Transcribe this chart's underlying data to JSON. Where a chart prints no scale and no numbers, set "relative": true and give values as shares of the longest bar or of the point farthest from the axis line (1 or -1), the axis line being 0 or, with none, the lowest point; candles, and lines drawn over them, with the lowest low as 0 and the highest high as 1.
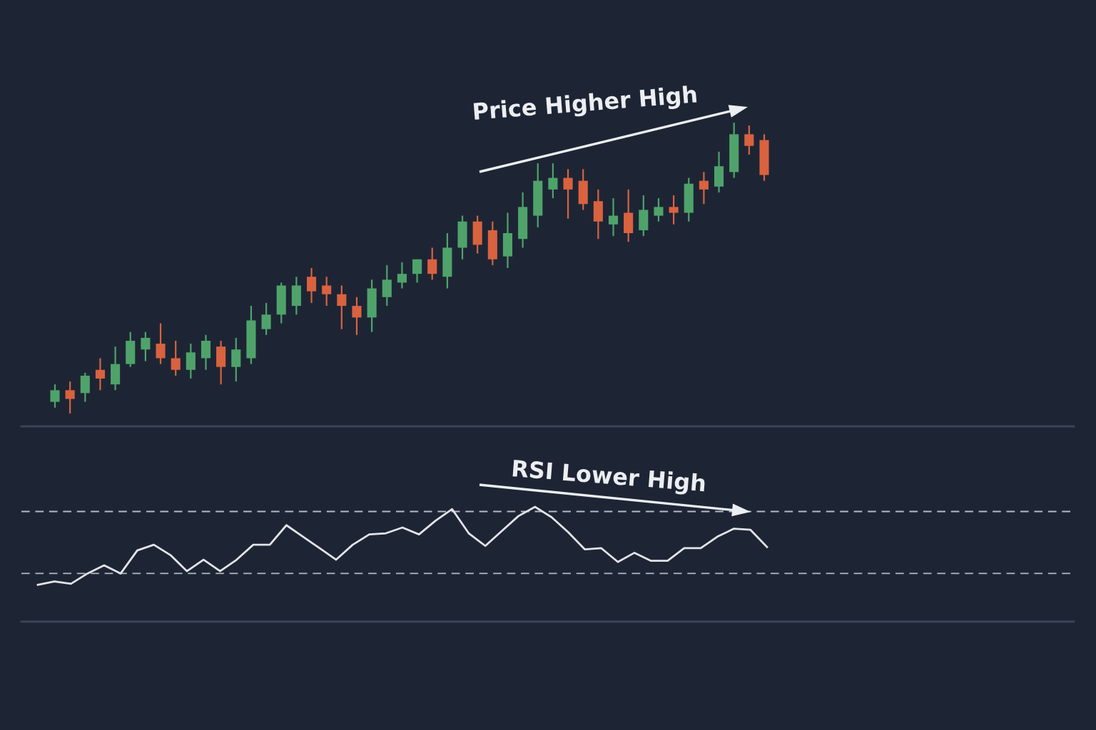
{
  "chart_data": [
    {
      "type": "candlestick",
      "relative": true,
      "tick_labels": false,
      "categories": [
        null,
        null,
        null,
        null,
        null,
        null,
        null,
        null,
        null,
        null,
        null,
        null,
        null,
        null,
        null,
        null,
        null,
        null,
        null,
        null,
        null,
        null,
        null,
        null,
        null,
        null,
        null,
        null,
        null,
        null,
        null,
        null,
        null,
        null,
        null,
        null,
        null,
        null,
        null,
        null,
        null,
        null,
        null,
        null,
        null,
        null,
        null,
        null
      ],
      "ohlc": [
        [
          0.04,
          0.1,
          0.02,
          0.08
        ],
        [
          0.08,
          0.11,
          0,
          0.05
        ],
        [
          0.07,
          0.14,
          0.04,
          0.13
        ],
        [
          0.15,
          0.19,
          0.08,
          0.12
        ],
        [
          0.1,
          0.23,
          0.08,
          0.17
        ],
        [
          0.17,
          0.28,
          0.16,
          0.25
        ],
        [
          0.22,
          0.28,
          0.18,
          0.26
        ],
        [
          0.24,
          0.31,
          0.17,
          0.19
        ],
        [
          0.19,
          0.25,
          0.13,
          0.15
        ],
        [
          0.15,
          0.24,
          0.12,
          0.21
        ],
        [
          0.19,
          0.27,
          0.15,
          0.25
        ],
        [
          0.23,
          0.25,
          0.1,
          0.16
        ],
        [
          0.16,
          0.26,
          0.11,
          0.22
        ],
        [
          0.19,
          0.37,
          0.17,
          0.32
        ],
        [
          0.29,
          0.38,
          0.27,
          0.34
        ],
        [
          0.34,
          0.45,
          0.31,
          0.44
        ],
        [
          0.37,
          0.47,
          0.34,
          0.44
        ],
        [
          0.47,
          0.5,
          0.38,
          0.42
        ],
        [
          0.44,
          0.47,
          0.37,
          0.41
        ],
        [
          0.41,
          0.44,
          0.29,
          0.37
        ],
        [
          0.37,
          0.4,
          0.27,
          0.33
        ],
        [
          0.33,
          0.46,
          0.28,
          0.43
        ],
        [
          0.4,
          0.51,
          0.37,
          0.46
        ],
        [
          0.45,
          0.52,
          0.43,
          0.48
        ],
        [
          0.48,
          0.53,
          0.45,
          0.53
        ],
        [
          0.53,
          0.57,
          0.46,
          0.48
        ],
        [
          0.47,
          0.62,
          0.43,
          0.57
        ],
        [
          0.57,
          0.68,
          0.53,
          0.66
        ],
        [
          0.66,
          0.68,
          0.55,
          0.58
        ],
        [
          0.63,
          0.66,
          0.51,
          0.53
        ],
        [
          0.54,
          0.69,
          0.5,
          0.62
        ],
        [
          0.6,
          0.76,
          0.57,
          0.71
        ],
        [
          0.68,
          0.86,
          0.64,
          0.8
        ],
        [
          0.77,
          0.86,
          0.74,
          0.81
        ],
        [
          0.81,
          0.84,
          0.67,
          0.77
        ],
        [
          0.8,
          0.84,
          0.7,
          0.72
        ],
        [
          0.73,
          0.77,
          0.6,
          0.66
        ],
        [
          0.65,
          0.74,
          0.61,
          0.68
        ],
        [
          0.69,
          0.77,
          0.59,
          0.62
        ],
        [
          0.63,
          0.75,
          0.61,
          0.7
        ],
        [
          0.68,
          0.74,
          0.66,
          0.71
        ],
        [
          0.71,
          0.75,
          0.65,
          0.69
        ],
        [
          0.69,
          0.81,
          0.66,
          0.79
        ],
        [
          0.8,
          0.83,
          0.72,
          0.77
        ],
        [
          0.78,
          0.9,
          0.76,
          0.85
        ],
        [
          0.83,
          1,
          0.81,
          0.96
        ],
        [
          0.96,
          0.99,
          0.89,
          0.92
        ],
        [
          0.94,
          0.96,
          0.8,
          0.82
        ]
      ],
      "colors": [
        "#4fa36a",
        "#d9623f",
        "#4fa36a",
        "#d9623f",
        "#4fa36a",
        "#4fa36a",
        "#4fa36a",
        "#d9623f",
        "#d9623f",
        "#4fa36a",
        "#4fa36a",
        "#d9623f",
        "#4fa36a",
        "#4fa36a",
        "#4fa36a",
        "#4fa36a",
        "#4fa36a",
        "#d9623f",
        "#d9623f",
        "#d9623f",
        "#d9623f",
        "#4fa36a",
        "#4fa36a",
        "#4fa36a",
        "#4fa36a",
        "#d9623f",
        "#4fa36a",
        "#4fa36a",
        "#d9623f",
        "#d9623f",
        "#4fa36a",
        "#4fa36a",
        "#4fa36a",
        "#4fa36a",
        "#d9623f",
        "#d9623f",
        "#d9623f",
        "#4fa36a",
        "#d9623f",
        "#4fa36a",
        "#4fa36a",
        "#d9623f",
        "#4fa36a",
        "#d9623f",
        "#4fa36a",
        "#4fa36a",
        "#d9623f",
        "#d9623f"
      ],
      "annotations": [
        "Price Higher High"
      ]
    },
    {
      "type": "line",
      "relative": true,
      "tick_labels": false,
      "color": "#e2e4e8",
      "line_style": "solid",
      "marker": "none",
      "categories": [
        null,
        null,
        null,
        null,
        null,
        null,
        null,
        null,
        null,
        null,
        null,
        null,
        null,
        null,
        null,
        null,
        null,
        null,
        null,
        null,
        null,
        null,
        null,
        null,
        null,
        null,
        null,
        null,
        null,
        null,
        null,
        null,
        null,
        null,
        null,
        null,
        null,
        null,
        null,
        null,
        null,
        null,
        null,
        null,
        null
      ],
      "values": [
        0.32,
        0.35,
        0.33,
        0.42,
        0.49,
        0.42,
        0.62,
        0.67,
        0.58,
        0.44,
        0.54,
        0.44,
        0.54,
        0.67,
        0.67,
        0.84,
        0.74,
        0.64,
        0.54,
        0.67,
        0.76,
        0.77,
        0.82,
        0.76,
        0.88,
        0.98,
        0.77,
        0.66,
        0.79,
        0.92,
        1,
        0.91,
        0.78,
        0.63,
        0.64,
        0.52,
        0.6,
        0.53,
        0.53,
        0.64,
        0.64,
        0.74,
        0.81,
        0.8,
        0.65
      ],
      "ref_lines": [
        {
          "axis": "y",
          "value": 0.96,
          "color": "#b4bac3",
          "line_style": "dashed"
        },
        {
          "axis": "y",
          "value": 0.42,
          "color": "#b4bac3",
          "line_style": "dashed"
        }
      ],
      "annotations": [
        "RSI Lower High"
      ]
    }
  ]
}
